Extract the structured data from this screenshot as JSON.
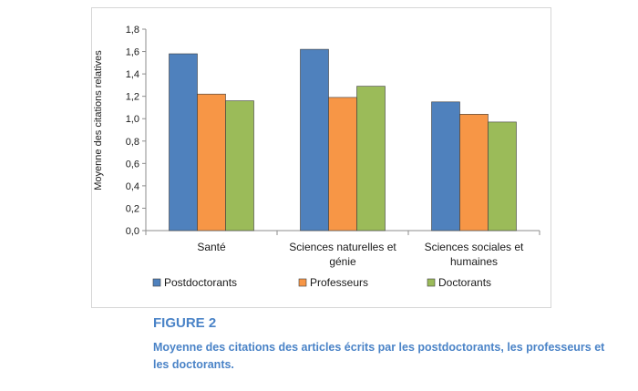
{
  "chart_data": {
    "type": "bar",
    "categories": [
      [
        "Santé"
      ],
      [
        "Sciences naturelles et",
        "génie"
      ],
      [
        "Sciences sociales et",
        "humaines"
      ]
    ],
    "series": [
      {
        "name": "Postdoctorants",
        "color": "#4f81bd",
        "values": [
          1.58,
          1.62,
          1.15
        ]
      },
      {
        "name": "Professeurs",
        "color": "#f79646",
        "values": [
          1.22,
          1.19,
          1.04
        ]
      },
      {
        "name": "Doctorants",
        "color": "#9bbb59",
        "values": [
          1.16,
          1.29,
          0.97
        ]
      }
    ],
    "ylabel": "Moyenne des citations relatives",
    "ylim": [
      0,
      1.8
    ],
    "yticks": [
      "0,0",
      "0,2",
      "0,4",
      "0,6",
      "0,8",
      "1,0",
      "1,2",
      "1,4",
      "1,6",
      "1,8"
    ],
    "grid": false,
    "legend_position": "bottom"
  },
  "figure": {
    "number": "FIGURE 2",
    "caption": "Moyenne des citations des articles écrits par les postdoctorants, les professeurs et les doctorants."
  }
}
